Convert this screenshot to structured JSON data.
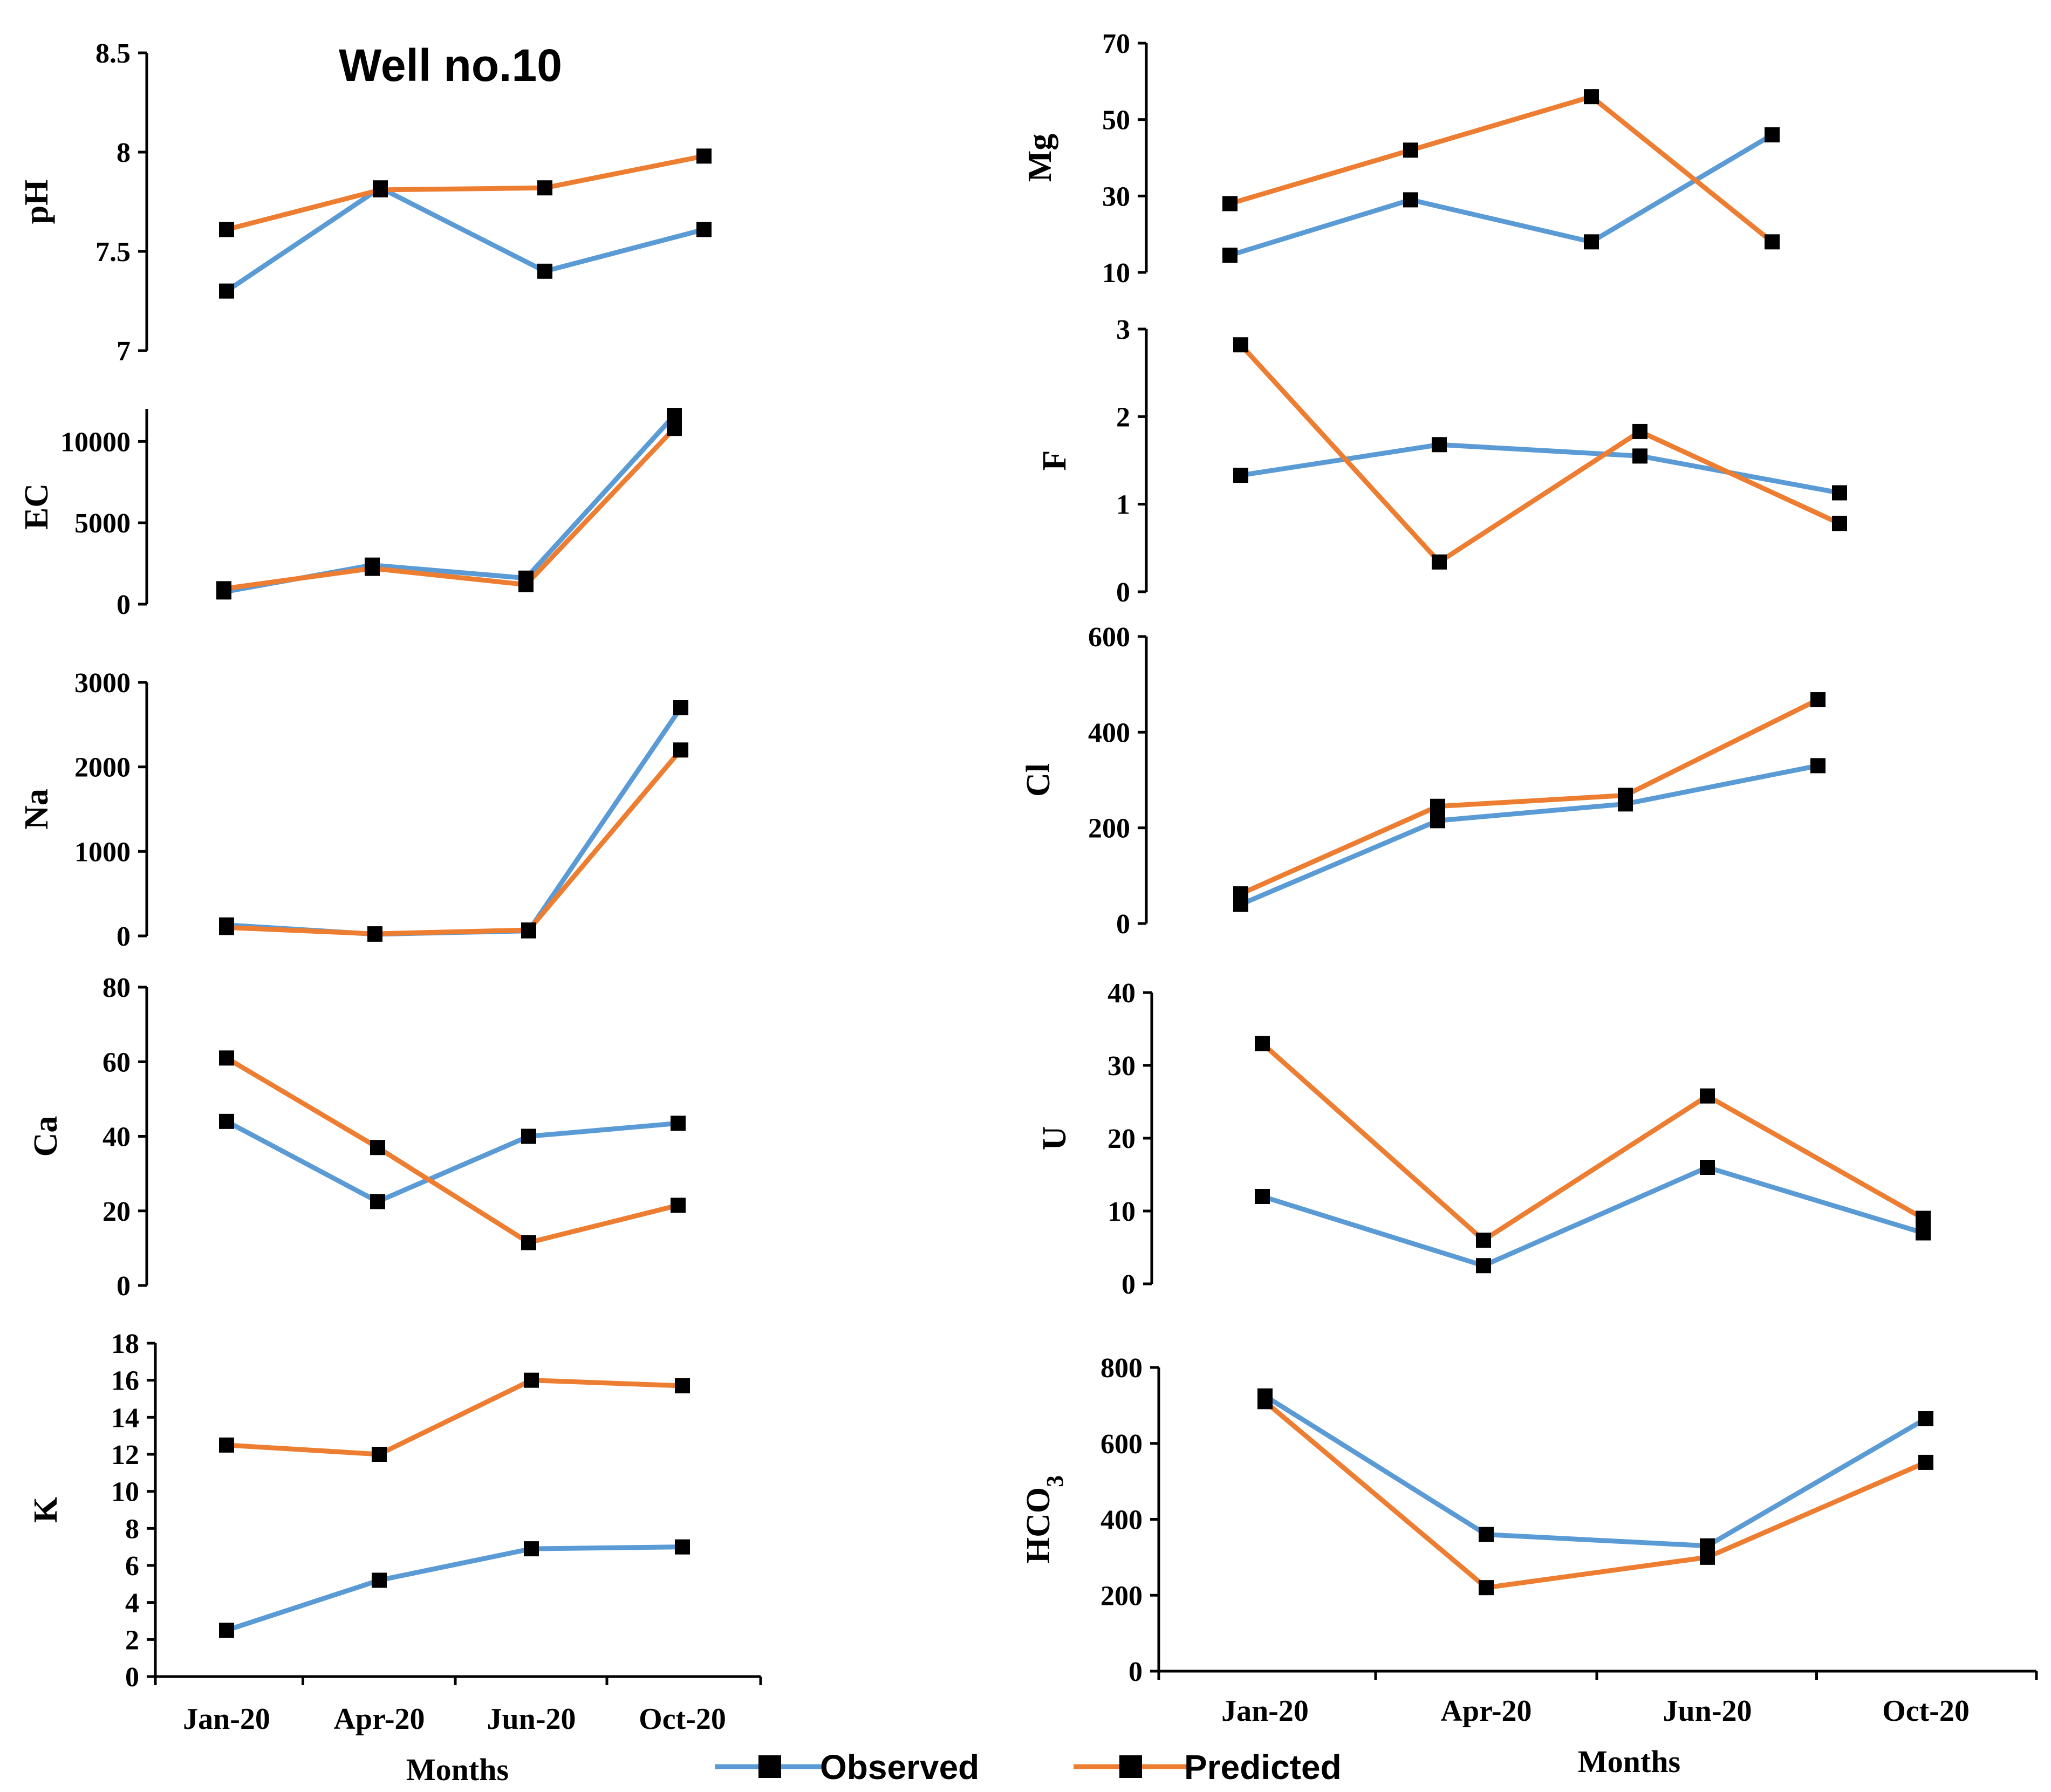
{
  "title": "Well no.10",
  "legend": [
    {
      "name": "Observed",
      "color": "#5B9BD5"
    },
    {
      "name": "Predicted",
      "color": "#ED7D31"
    }
  ],
  "chart_data": [
    {
      "type": "line",
      "id": "ph",
      "ylabel": "pH",
      "ylim": [
        7,
        8.5
      ],
      "yticks": [
        {
          "v": 7,
          "t": "7"
        },
        {
          "v": 7.5,
          "t": "7.5"
        },
        {
          "v": 8,
          "t": "8"
        },
        {
          "v": 8.5,
          "t": "8.5"
        }
      ],
      "categories": [
        "Jan-20",
        "Apr-20",
        "Jun-20",
        "Oct-20"
      ],
      "show_categories": false,
      "series": [
        {
          "name": "Observed",
          "values": [
            7.3,
            7.82,
            7.4,
            7.61
          ]
        },
        {
          "name": "Predicted",
          "values": [
            7.61,
            7.81,
            7.82,
            7.98
          ]
        }
      ]
    },
    {
      "type": "line",
      "id": "ec",
      "ylabel": "EC",
      "ylim": [
        0,
        12000
      ],
      "yticks": [
        {
          "v": 0,
          "t": "0"
        },
        {
          "v": 5000,
          "t": "5000"
        },
        {
          "v": 10000,
          "t": "10000"
        }
      ],
      "categories": [
        "Jan-20",
        "Apr-20",
        "Jun-20",
        "Oct-20"
      ],
      "show_categories": false,
      "series": [
        {
          "name": "Observed",
          "values": [
            750,
            2400,
            1600,
            11600
          ]
        },
        {
          "name": "Predicted",
          "values": [
            950,
            2200,
            1200,
            10800
          ]
        }
      ]
    },
    {
      "type": "line",
      "id": "na",
      "ylabel": "Na",
      "ylim": [
        0,
        3000
      ],
      "yticks": [
        {
          "v": 0,
          "t": "0"
        },
        {
          "v": 1000,
          "t": "1000"
        },
        {
          "v": 2000,
          "t": "2000"
        },
        {
          "v": 3000,
          "t": "3000"
        }
      ],
      "categories": [
        "Jan-20",
        "Apr-20",
        "Jun-20",
        "Oct-20"
      ],
      "show_categories": false,
      "series": [
        {
          "name": "Observed",
          "values": [
            130,
            20,
            60,
            2700
          ]
        },
        {
          "name": "Predicted",
          "values": [
            100,
            25,
            70,
            2200
          ]
        }
      ]
    },
    {
      "type": "line",
      "id": "ca",
      "ylabel": "Ca",
      "ylim": [
        0,
        80
      ],
      "yticks": [
        {
          "v": 0,
          "t": "0"
        },
        {
          "v": 20,
          "t": "20"
        },
        {
          "v": 40,
          "t": "40"
        },
        {
          "v": 60,
          "t": "60"
        },
        {
          "v": 80,
          "t": "80"
        }
      ],
      "categories": [
        "Jan-20",
        "Apr-20",
        "Jun-20",
        "Oct-20"
      ],
      "show_categories": false,
      "series": [
        {
          "name": "Observed",
          "values": [
            44,
            22.5,
            40,
            43.5
          ]
        },
        {
          "name": "Predicted",
          "values": [
            61,
            37,
            11.5,
            21.5
          ]
        }
      ]
    },
    {
      "type": "line",
      "id": "k",
      "ylabel": "K",
      "ylim": [
        0,
        18
      ],
      "xlabel": "Months",
      "yticks": [
        {
          "v": 0,
          "t": "0"
        },
        {
          "v": 2,
          "t": "2"
        },
        {
          "v": 4,
          "t": "4"
        },
        {
          "v": 6,
          "t": "6"
        },
        {
          "v": 8,
          "t": "8"
        },
        {
          "v": 10,
          "t": "10"
        },
        {
          "v": 12,
          "t": "12"
        },
        {
          "v": 14,
          "t": "14"
        },
        {
          "v": 16,
          "t": "16"
        },
        {
          "v": 18,
          "t": "18"
        }
      ],
      "categories": [
        "Jan-20",
        "Apr-20",
        "Jun-20",
        "Oct-20"
      ],
      "show_categories": true,
      "series": [
        {
          "name": "Observed",
          "values": [
            2.5,
            5.2,
            6.9,
            7.0
          ]
        },
        {
          "name": "Predicted",
          "values": [
            12.5,
            12.0,
            16.0,
            15.7
          ]
        }
      ]
    },
    {
      "type": "line",
      "id": "mg",
      "ylabel": "Mg",
      "ylim": [
        10,
        70
      ],
      "yticks": [
        {
          "v": 10,
          "t": "10"
        },
        {
          "v": 30,
          "t": "30"
        },
        {
          "v": 50,
          "t": "50"
        },
        {
          "v": 70,
          "t": "70"
        }
      ],
      "categories": [
        "Jan-20",
        "Apr-20",
        "Jun-20",
        "Oct-20"
      ],
      "show_categories": false,
      "series": [
        {
          "name": "Observed",
          "values": [
            14.5,
            29,
            18,
            46
          ]
        },
        {
          "name": "Predicted",
          "values": [
            28,
            42,
            56,
            18
          ]
        }
      ]
    },
    {
      "type": "line",
      "id": "f",
      "ylabel": "F",
      "ylim": [
        0,
        3
      ],
      "yticks": [
        {
          "v": 0,
          "t": "0"
        },
        {
          "v": 1,
          "t": "1"
        },
        {
          "v": 2,
          "t": "2"
        },
        {
          "v": 3,
          "t": "3"
        }
      ],
      "categories": [
        "Jan-20",
        "Apr-20",
        "Jun-20",
        "Oct-20"
      ],
      "show_categories": false,
      "series": [
        {
          "name": "Observed",
          "values": [
            1.33,
            1.68,
            1.55,
            1.13
          ]
        },
        {
          "name": "Predicted",
          "values": [
            2.82,
            0.34,
            1.83,
            0.78
          ]
        }
      ]
    },
    {
      "type": "line",
      "id": "cl",
      "ylabel": "Cl",
      "ylim": [
        0,
        600
      ],
      "yticks": [
        {
          "v": 0,
          "t": "0"
        },
        {
          "v": 200,
          "t": "200"
        },
        {
          "v": 400,
          "t": "400"
        },
        {
          "v": 600,
          "t": "600"
        }
      ],
      "categories": [
        "Jan-20",
        "Apr-20",
        "Jun-20",
        "Oct-20"
      ],
      "show_categories": false,
      "series": [
        {
          "name": "Observed",
          "values": [
            40,
            215,
            250,
            330
          ]
        },
        {
          "name": "Predicted",
          "values": [
            62,
            245,
            268,
            468
          ]
        }
      ]
    },
    {
      "type": "line",
      "id": "u",
      "ylabel": "U",
      "ylim": [
        0,
        40
      ],
      "yticks": [
        {
          "v": 0,
          "t": "0"
        },
        {
          "v": 10,
          "t": "10"
        },
        {
          "v": 20,
          "t": "20"
        },
        {
          "v": 30,
          "t": "30"
        },
        {
          "v": 40,
          "t": "40"
        }
      ],
      "categories": [
        "Jan-20",
        "Apr-20",
        "Jun-20",
        "Oct-20"
      ],
      "show_categories": false,
      "series": [
        {
          "name": "Observed",
          "values": [
            12,
            2.5,
            16,
            7
          ]
        },
        {
          "name": "Predicted",
          "values": [
            33,
            6,
            25.8,
            9
          ]
        }
      ]
    },
    {
      "type": "line",
      "id": "hco3",
      "ylabel": "HCO",
      "ylabel_sub": "3",
      "ylim": [
        0,
        800
      ],
      "xlabel": "Months",
      "yticks": [
        {
          "v": 0,
          "t": "0"
        },
        {
          "v": 200,
          "t": "200"
        },
        {
          "v": 400,
          "t": "400"
        },
        {
          "v": 600,
          "t": "600"
        },
        {
          "v": 800,
          "t": "800"
        }
      ],
      "categories": [
        "Jan-20",
        "Apr-20",
        "Jun-20",
        "Oct-20"
      ],
      "show_categories": true,
      "series": [
        {
          "name": "Observed",
          "values": [
            725,
            360,
            330,
            665
          ]
        },
        {
          "name": "Predicted",
          "values": [
            710,
            220,
            300,
            550
          ]
        }
      ]
    }
  ]
}
